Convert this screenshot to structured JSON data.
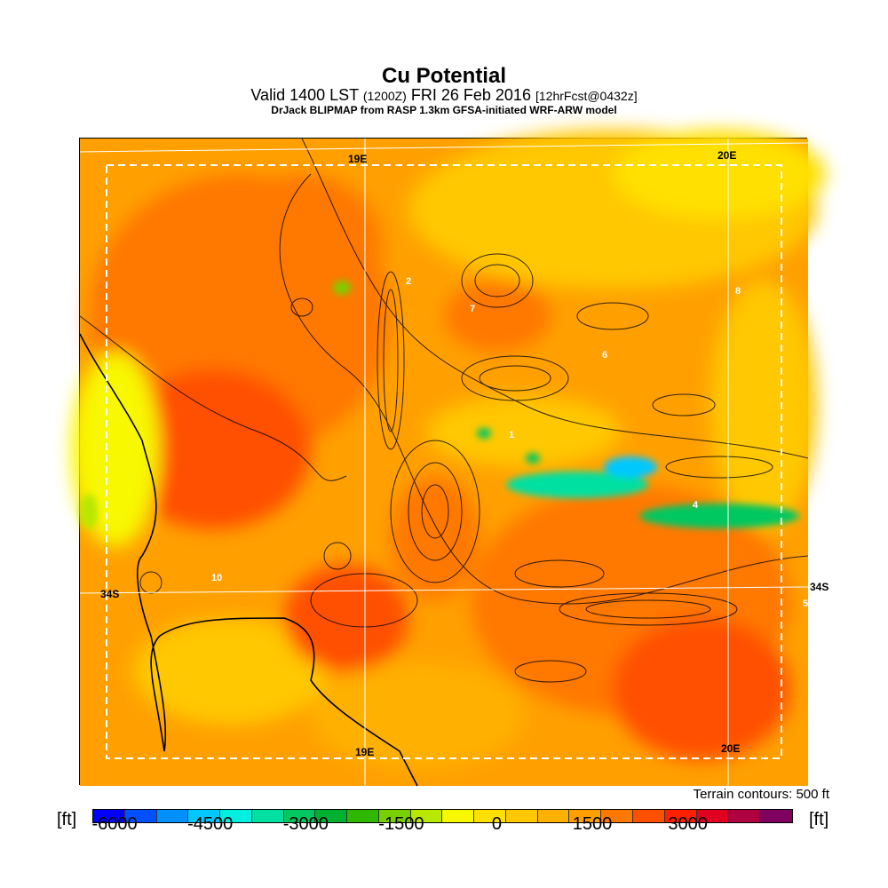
{
  "header": {
    "title": "Cu Potential",
    "valid": "Valid 1400 LST",
    "utc": "(1200Z)",
    "date": "FRI 26 Feb 2016",
    "fcst": "[12hrFcst@0432z]",
    "source": "DrJack BLIPMAP from RASP 1.3km GFSA-initiated WRF-ARW model"
  },
  "map": {
    "grid_labels": {
      "lon19_top": "19E",
      "lon20_top": "20E",
      "lon19_bottom": "19E",
      "lon20_bottom": "20E",
      "lat34_left": "34S",
      "lat34_right": "34S"
    },
    "site_numbers": [
      "2",
      "7",
      "6",
      "1",
      "4",
      "8",
      "10",
      "5"
    ]
  },
  "footer": {
    "terrain_note": "Terrain contours: 500 ft",
    "unit_left": "[ft]",
    "unit_right": "[ft]"
  },
  "colorbar": {
    "colors": [
      "#0000ff",
      "#0050ff",
      "#0090ff",
      "#00c8ff",
      "#00f0e0",
      "#00e0a0",
      "#00c860",
      "#00b030",
      "#30b800",
      "#78d000",
      "#b8e800",
      "#f8f800",
      "#ffe000",
      "#ffc800",
      "#ffb000",
      "#ffa000",
      "#ff7800",
      "#ff5000",
      "#ff2000",
      "#e00020",
      "#b00040",
      "#800060"
    ],
    "ticks": [
      "-6000",
      "-4500",
      "-3000",
      "-1500",
      "0",
      "1500",
      "3000"
    ]
  }
}
